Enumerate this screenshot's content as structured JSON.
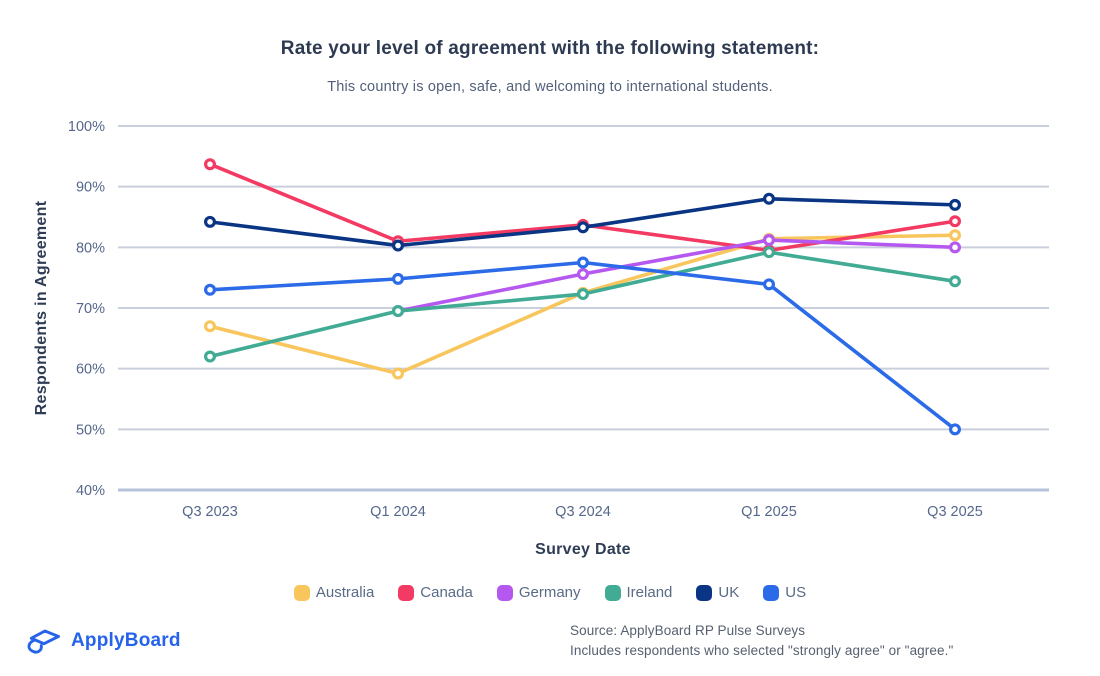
{
  "header": {
    "title": "Rate your level of agreement with the following statement:",
    "subtitle": "This country is open, safe, and welcoming to international students."
  },
  "chart_data": {
    "type": "line",
    "title": "Rate your level of agreement with the following statement:",
    "subtitle": "This country is open, safe, and welcoming to international students.",
    "xlabel": "Survey Date",
    "ylabel": "Respondents in Agreement",
    "categories": [
      "Q3 2023",
      "Q1 2024",
      "Q3 2024",
      "Q1 2025",
      "Q3 2025"
    ],
    "y_ticks": [
      "100%",
      "90%",
      "80%",
      "70%",
      "60%",
      "50%",
      "40%"
    ],
    "ylim": [
      40,
      100
    ],
    "grid": true,
    "legend_position": "bottom",
    "series": [
      {
        "name": "Australia",
        "color": "#F8C65D",
        "values": [
          67,
          59.2,
          72.5,
          81.4,
          82
        ]
      },
      {
        "name": "Canada",
        "color": "#F23A63",
        "values": [
          93.7,
          81,
          83.7,
          79.5,
          84.3
        ]
      },
      {
        "name": "Germany",
        "color": "#B558EF",
        "values": [
          null,
          69.5,
          75.6,
          81.2,
          80
        ]
      },
      {
        "name": "Ireland",
        "color": "#41AB94",
        "values": [
          62,
          69.5,
          72.3,
          79.2,
          74.4
        ]
      },
      {
        "name": "UK",
        "color": "#0A3484",
        "values": [
          84.2,
          80.3,
          83.3,
          88,
          87
        ]
      },
      {
        "name": "US",
        "color": "#2C6BE8",
        "values": [
          73,
          74.8,
          77.5,
          73.9,
          50
        ]
      }
    ]
  },
  "footer": {
    "logo_text": "ApplyBoard",
    "source_line1": "Source: ApplyBoard RP Pulse Surveys",
    "source_line2": "Includes respondents who selected \"strongly agree\" or \"agree.\""
  },
  "colors": {
    "title_text": "#2e3a52",
    "subtitle_text": "#53607a",
    "axis_text": "#56678b",
    "axis_title_text": "#2e3c55",
    "gridline": "#c9cfdc",
    "baseline": "#b7c3da",
    "logo_blue": "#2563eb",
    "background": "#ffffff"
  }
}
